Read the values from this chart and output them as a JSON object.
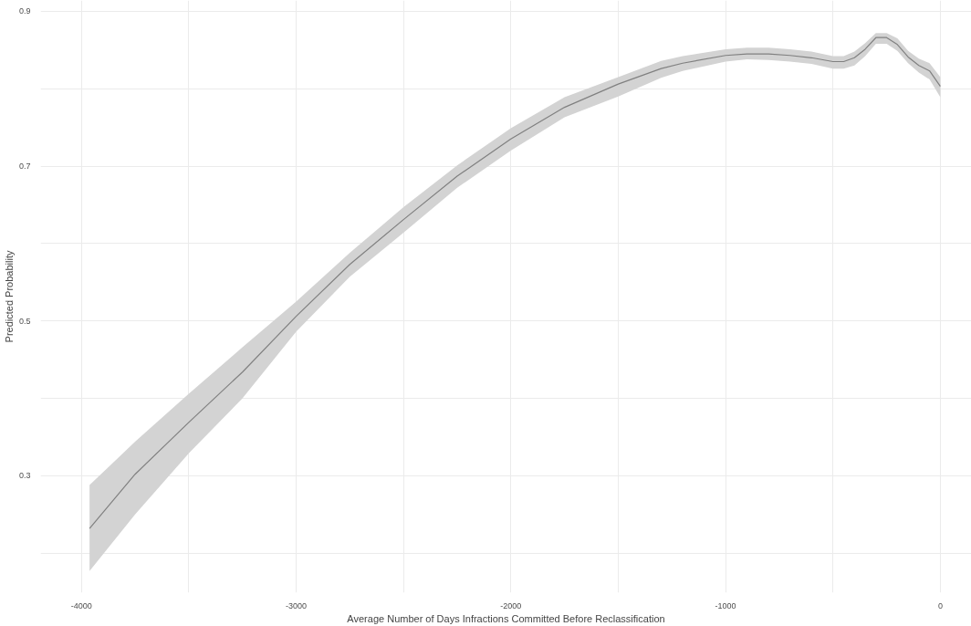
{
  "chart_data": {
    "type": "line",
    "xlabel": "Average Number of Days Infractions Committed Before Reclassification",
    "ylabel": "Predicted Probability",
    "x": [
      -3962,
      -3750,
      -3500,
      -3250,
      -3000,
      -2750,
      -2500,
      -2250,
      -2000,
      -1750,
      -1500,
      -1300,
      -1200,
      -1000,
      -900,
      -800,
      -700,
      -600,
      -500,
      -450,
      -400,
      -350,
      -300,
      -250,
      -200,
      -150,
      -100,
      -50,
      0
    ],
    "series": [
      {
        "color": "#808080",
        "values": [
          0.232,
          0.302,
          0.369,
          0.434,
          0.506,
          0.573,
          0.631,
          0.687,
          0.735,
          0.776,
          0.806,
          0.826,
          0.833,
          0.843,
          0.845,
          0.845,
          0.843,
          0.84,
          0.835,
          0.835,
          0.84,
          0.851,
          0.866,
          0.866,
          0.857,
          0.841,
          0.83,
          0.823,
          0.803
        ],
        "lower": [
          0.177,
          0.25,
          0.329,
          0.4,
          0.486,
          0.557,
          0.614,
          0.672,
          0.72,
          0.763,
          0.79,
          0.814,
          0.823,
          0.835,
          0.838,
          0.837,
          0.835,
          0.832,
          0.826,
          0.826,
          0.83,
          0.842,
          0.858,
          0.858,
          0.849,
          0.833,
          0.821,
          0.812,
          0.789
        ],
        "upper": [
          0.288,
          0.344,
          0.406,
          0.466,
          0.525,
          0.588,
          0.647,
          0.701,
          0.749,
          0.789,
          0.815,
          0.836,
          0.842,
          0.851,
          0.853,
          0.853,
          0.851,
          0.848,
          0.842,
          0.842,
          0.848,
          0.859,
          0.872,
          0.872,
          0.865,
          0.849,
          0.839,
          0.833,
          0.815
        ]
      }
    ],
    "xlim": [
      -4190,
      145
    ],
    "ylim": [
      0.149,
      0.914
    ],
    "xticks": [
      -4000,
      {
        "value": -3500,
        "label": null
      },
      -3000,
      {
        "value": -2500,
        "label": null
      },
      -2000,
      {
        "value": -1500,
        "label": null
      },
      -1000,
      {
        "value": -500,
        "label": null
      },
      0
    ],
    "yticks": [
      {
        "value": 0.2,
        "label": null
      },
      0.3,
      {
        "value": 0.4,
        "label": null
      },
      0.5,
      {
        "value": 0.6,
        "label": null
      },
      0.7,
      {
        "value": 0.8,
        "label": null
      },
      0.9
    ],
    "grid": true,
    "line_style": "solid"
  }
}
